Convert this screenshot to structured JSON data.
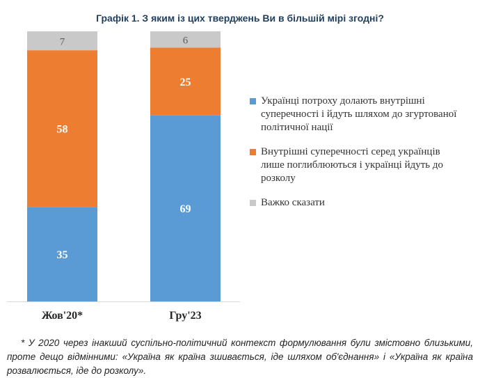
{
  "colors": {
    "series_1": "#5b9bd5",
    "series_2": "#ed7d31",
    "series_3": "#c9c9c9",
    "label_light": "#ffffff",
    "label_dark": "#595959",
    "axis": "#d9d9d9",
    "tick": "#262626"
  },
  "chart_data": {
    "type": "bar",
    "stacked": true,
    "percent_stacked": true,
    "title": "Графік 1. З яким із цих тверджень Ви в більшій мірі згодні?",
    "categories": [
      "Жов'20*",
      "Гру'23"
    ],
    "series": [
      {
        "name": "Українці потроху долають внутрішні суперечності і йдуть шляхом до згуртованої політичної нації",
        "values": [
          35,
          69
        ]
      },
      {
        "name": "Внутрішні суперечності серед українців лише поглиблюються і українці йдуть до розколу",
        "values": [
          58,
          25
        ]
      },
      {
        "name": "Важко сказати",
        "values": [
          7,
          6
        ]
      }
    ],
    "ylim": [
      0,
      100
    ],
    "legend_position": "right",
    "grid": false,
    "xlabel": "",
    "ylabel": ""
  },
  "footnote": "* У 2020 через інакший суспільно-політичний контекст формулювання були змістовно близькими, проте дещо відмінними: «Україна як країна зшивається, іде шляхом об'єднання» і «Україна як країна розвалюється, іде до розколу»."
}
